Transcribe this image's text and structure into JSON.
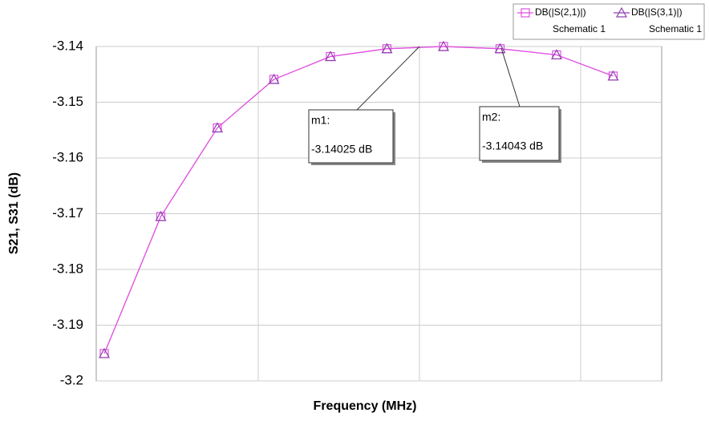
{
  "chart_data": {
    "type": "line",
    "x_label": "Frequency (MHz)",
    "y_label": "S21, S31 (dB)",
    "categories": [
      null,
      null,
      null,
      null,
      null,
      null,
      null,
      null,
      null,
      null
    ],
    "series": [
      {
        "name": "DB(|S(2,1)|)",
        "source": "Schematic 1",
        "color": "#e050e0",
        "marker": "square",
        "values": [
          -3.1951,
          -3.1705,
          -3.1546,
          -3.1459,
          -3.1418,
          -3.1404,
          -3.14,
          -3.1404,
          -3.1415,
          -3.1453
        ]
      },
      {
        "name": "DB(|S(3,1)|)",
        "source": "Schematic 1",
        "color": "#9040b0",
        "marker": "triangle",
        "values": [
          -3.1951,
          -3.1705,
          -3.1546,
          -3.1459,
          -3.1418,
          -3.1404,
          -3.14,
          -3.1404,
          -3.1415,
          -3.1453
        ]
      }
    ],
    "ylim": [
      -3.2,
      -3.14
    ],
    "yticks": [
      -3.14,
      -3.15,
      -3.16,
      -3.17,
      -3.18,
      -3.19,
      -3.2
    ],
    "grid": true,
    "annotations": [
      {
        "label": "m1:",
        "text": "-3.14025 dB"
      },
      {
        "label": "m2:",
        "text": "-3.14043 dB"
      }
    ]
  }
}
